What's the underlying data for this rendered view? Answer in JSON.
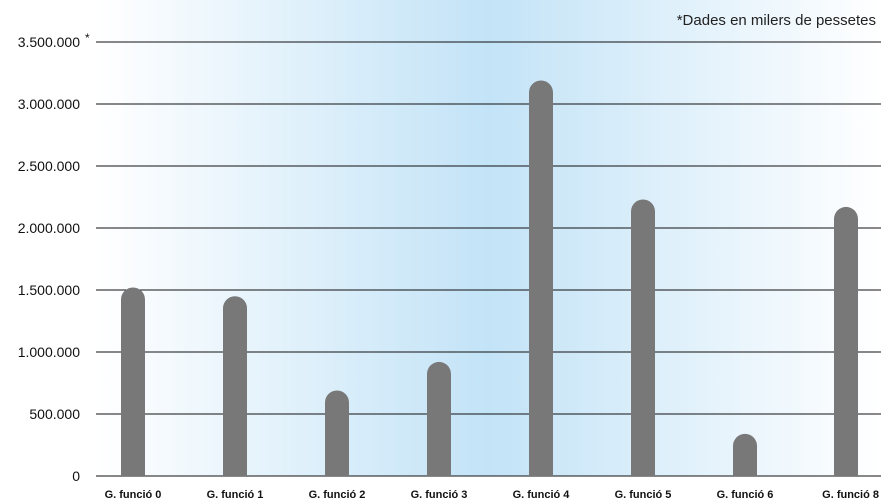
{
  "chart_data": {
    "type": "bar",
    "title": "",
    "xlabel": "",
    "ylabel": "",
    "note": "*Dades en milers de pessetes",
    "y_axis_marker": "*",
    "categories": [
      "G. funció 0",
      "G. funció 1",
      "G. funció 2",
      "G. funció 3",
      "G. funció 4",
      "G. funció 5",
      "G. funció 6",
      "G. funció 8"
    ],
    "values": [
      1520000,
      1450000,
      690000,
      920000,
      3190000,
      2230000,
      340000,
      2170000
    ],
    "ylim": [
      0,
      3500000
    ],
    "yticks": [
      0,
      500000,
      1000000,
      1500000,
      2000000,
      2500000,
      3000000,
      3500000
    ],
    "ytick_labels": [
      "0",
      "500.000",
      "1.000.000",
      "1.500.000",
      "2.000.000",
      "2.500.000",
      "3.000.000",
      "3.500.000"
    ],
    "grid": true,
    "colors": {
      "bar": "#787878",
      "background_center": "#c3e3f7",
      "background_edge": "#ffffff",
      "grid": "#111111"
    }
  }
}
